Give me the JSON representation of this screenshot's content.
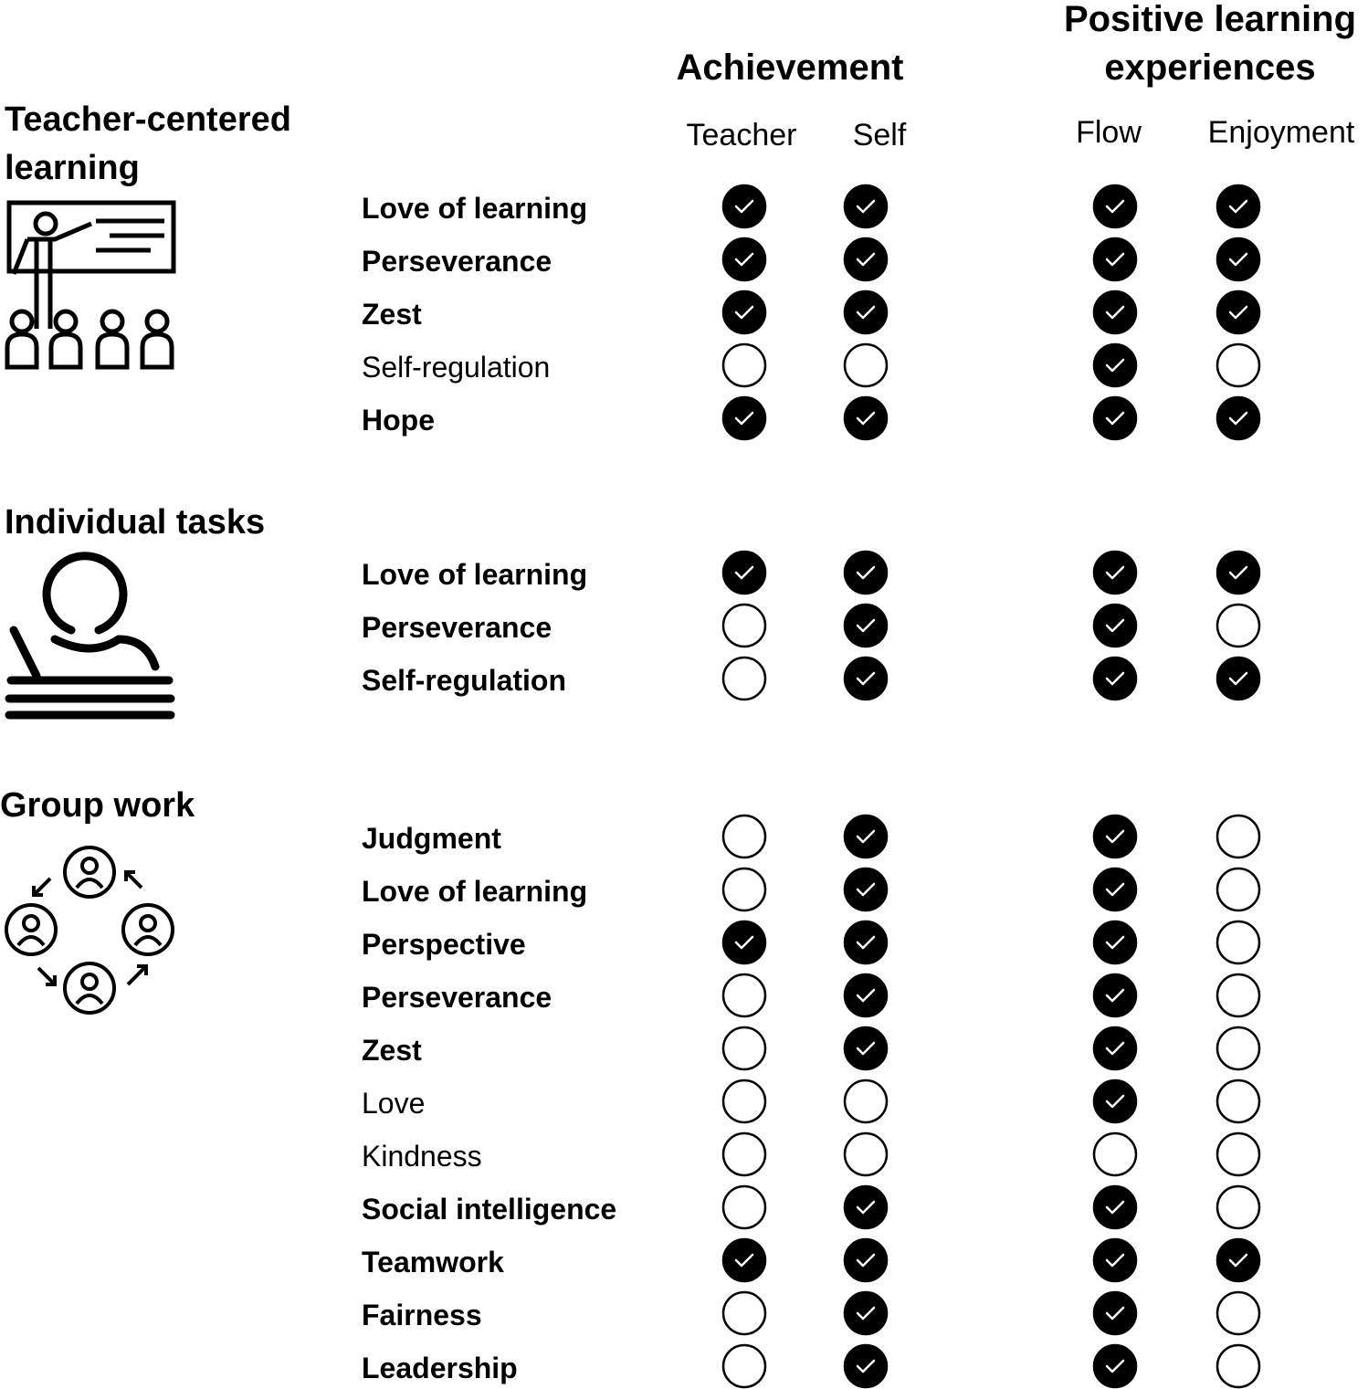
{
  "column_groups": [
    {
      "title": "Achievement",
      "columns": [
        "Teacher",
        "Self"
      ]
    },
    {
      "title": "Positive learning experiences",
      "columns": [
        "Flow",
        "Enjoyment"
      ]
    }
  ],
  "sections": [
    {
      "title": "Teacher-centered learning",
      "rows": [
        {
          "label": "Love of learning",
          "bold": true,
          "checks": [
            true,
            true,
            true,
            true
          ]
        },
        {
          "label": "Perseverance",
          "bold": true,
          "checks": [
            true,
            true,
            true,
            true
          ]
        },
        {
          "label": "Zest",
          "bold": true,
          "checks": [
            true,
            true,
            true,
            true
          ]
        },
        {
          "label": "Self-regulation",
          "bold": false,
          "checks": [
            false,
            false,
            true,
            false
          ]
        },
        {
          "label": "Hope",
          "bold": true,
          "checks": [
            true,
            true,
            true,
            true
          ]
        }
      ]
    },
    {
      "title": "Individual tasks",
      "rows": [
        {
          "label": "Love of learning",
          "bold": true,
          "checks": [
            true,
            true,
            true,
            true
          ]
        },
        {
          "label": "Perseverance",
          "bold": true,
          "checks": [
            false,
            true,
            true,
            false
          ]
        },
        {
          "label": "Self-regulation",
          "bold": true,
          "checks": [
            false,
            true,
            true,
            true
          ]
        }
      ]
    },
    {
      "title": "Group work",
      "rows": [
        {
          "label": "Judgment",
          "bold": true,
          "checks": [
            false,
            true,
            true,
            false
          ]
        },
        {
          "label": "Love of learning",
          "bold": true,
          "checks": [
            false,
            true,
            true,
            false
          ]
        },
        {
          "label": "Perspective",
          "bold": true,
          "checks": [
            true,
            true,
            true,
            false
          ]
        },
        {
          "label": "Perseverance",
          "bold": true,
          "checks": [
            false,
            true,
            true,
            false
          ]
        },
        {
          "label": "Zest",
          "bold": true,
          "checks": [
            false,
            true,
            true,
            false
          ]
        },
        {
          "label": "Love",
          "bold": false,
          "checks": [
            false,
            false,
            true,
            false
          ]
        },
        {
          "label": "Kindness",
          "bold": false,
          "checks": [
            false,
            false,
            false,
            false
          ]
        },
        {
          "label": "Social intelligence",
          "bold": true,
          "checks": [
            false,
            true,
            true,
            false
          ]
        },
        {
          "label": "Teamwork",
          "bold": true,
          "checks": [
            true,
            true,
            true,
            true
          ]
        },
        {
          "label": "Fairness",
          "bold": true,
          "checks": [
            false,
            true,
            true,
            false
          ]
        },
        {
          "label": "Leadership",
          "bold": true,
          "checks": [
            false,
            true,
            true,
            false
          ]
        }
      ]
    }
  ]
}
